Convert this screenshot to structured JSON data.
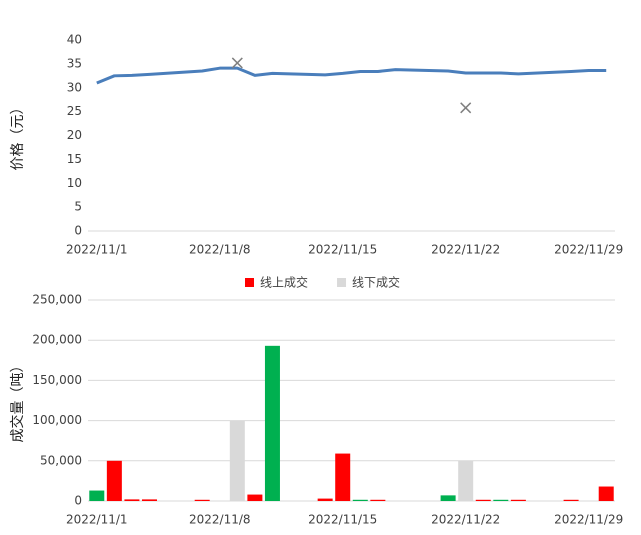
{
  "chart_data": [
    {
      "type": "line",
      "ylabel": "价格（元）",
      "x": [
        1,
        2,
        3,
        4,
        7,
        8,
        9,
        10,
        11,
        14,
        15,
        16,
        17,
        18,
        21,
        22,
        23,
        24,
        25,
        28,
        29,
        30
      ],
      "xlim": [
        0.5,
        30.5
      ],
      "xticks": [
        {
          "value": 1,
          "label": "2022/11/1"
        },
        {
          "value": 8,
          "label": "2022/11/8"
        },
        {
          "value": 15,
          "label": "2022/11/15"
        },
        {
          "value": 22,
          "label": "2022/11/22"
        },
        {
          "value": 29,
          "label": "2022/11/29"
        }
      ],
      "ylim": [
        0,
        40
      ],
      "yticks": [
        0,
        5,
        10,
        15,
        20,
        25,
        30,
        35,
        40
      ],
      "grid": false,
      "series": [
        {
          "color": "#4a7ebb",
          "values": [
            31.0,
            32.5,
            32.6,
            32.8,
            33.5,
            34.1,
            34.1,
            32.6,
            33.0,
            32.7,
            33.0,
            33.4,
            33.4,
            33.8,
            33.5,
            33.1,
            33.1,
            33.1,
            32.9,
            33.4,
            33.6,
            33.6
          ]
        },
        {
          "color": "#7f7f7f",
          "marker": "x",
          "x": [
            9,
            22
          ],
          "values": [
            35.2,
            25.8
          ]
        }
      ]
    },
    {
      "type": "bar",
      "ylabel": "成交量（吨）",
      "x": [
        1,
        2,
        3,
        4,
        7,
        9,
        10,
        11,
        14,
        15,
        16,
        17,
        21,
        22,
        23,
        24,
        25,
        28,
        30
      ],
      "xlim": [
        0.5,
        30.5
      ],
      "xticks": [
        {
          "value": 1,
          "label": "2022/11/1"
        },
        {
          "value": 8,
          "label": "2022/11/8"
        },
        {
          "value": 15,
          "label": "2022/11/15"
        },
        {
          "value": 22,
          "label": "2022/11/22"
        },
        {
          "value": 29,
          "label": "2022/11/29"
        }
      ],
      "ylim": [
        0,
        250000
      ],
      "yticks": [
        0,
        {
          "value": 50000,
          "label": "50,000"
        },
        {
          "value": 100000,
          "label": "100,000"
        },
        {
          "value": 150000,
          "label": "150,000"
        },
        {
          "value": 200000,
          "label": "200,000"
        },
        {
          "value": 250000,
          "label": "250,000"
        }
      ],
      "grid": true,
      "legend": "top",
      "series": [
        {
          "name": "线上成交",
          "color": "#ff0000",
          "values": [
            null,
            50000,
            2000,
            2000,
            1500,
            null,
            8000,
            null,
            3000,
            59000,
            null,
            1500,
            null,
            null,
            1500,
            null,
            1500,
            1500,
            18000
          ]
        },
        {
          "name": "线下成交",
          "color": "#d9d9d9",
          "values": [
            null,
            null,
            null,
            null,
            null,
            100000,
            null,
            null,
            null,
            null,
            null,
            null,
            null,
            50000,
            null,
            null,
            null,
            null,
            null
          ]
        },
        {
          "color": "#00b050",
          "values": [
            13000,
            null,
            null,
            null,
            null,
            null,
            null,
            193000,
            null,
            null,
            1500,
            null,
            7000,
            null,
            null,
            1500,
            null,
            null,
            null
          ]
        }
      ]
    }
  ]
}
